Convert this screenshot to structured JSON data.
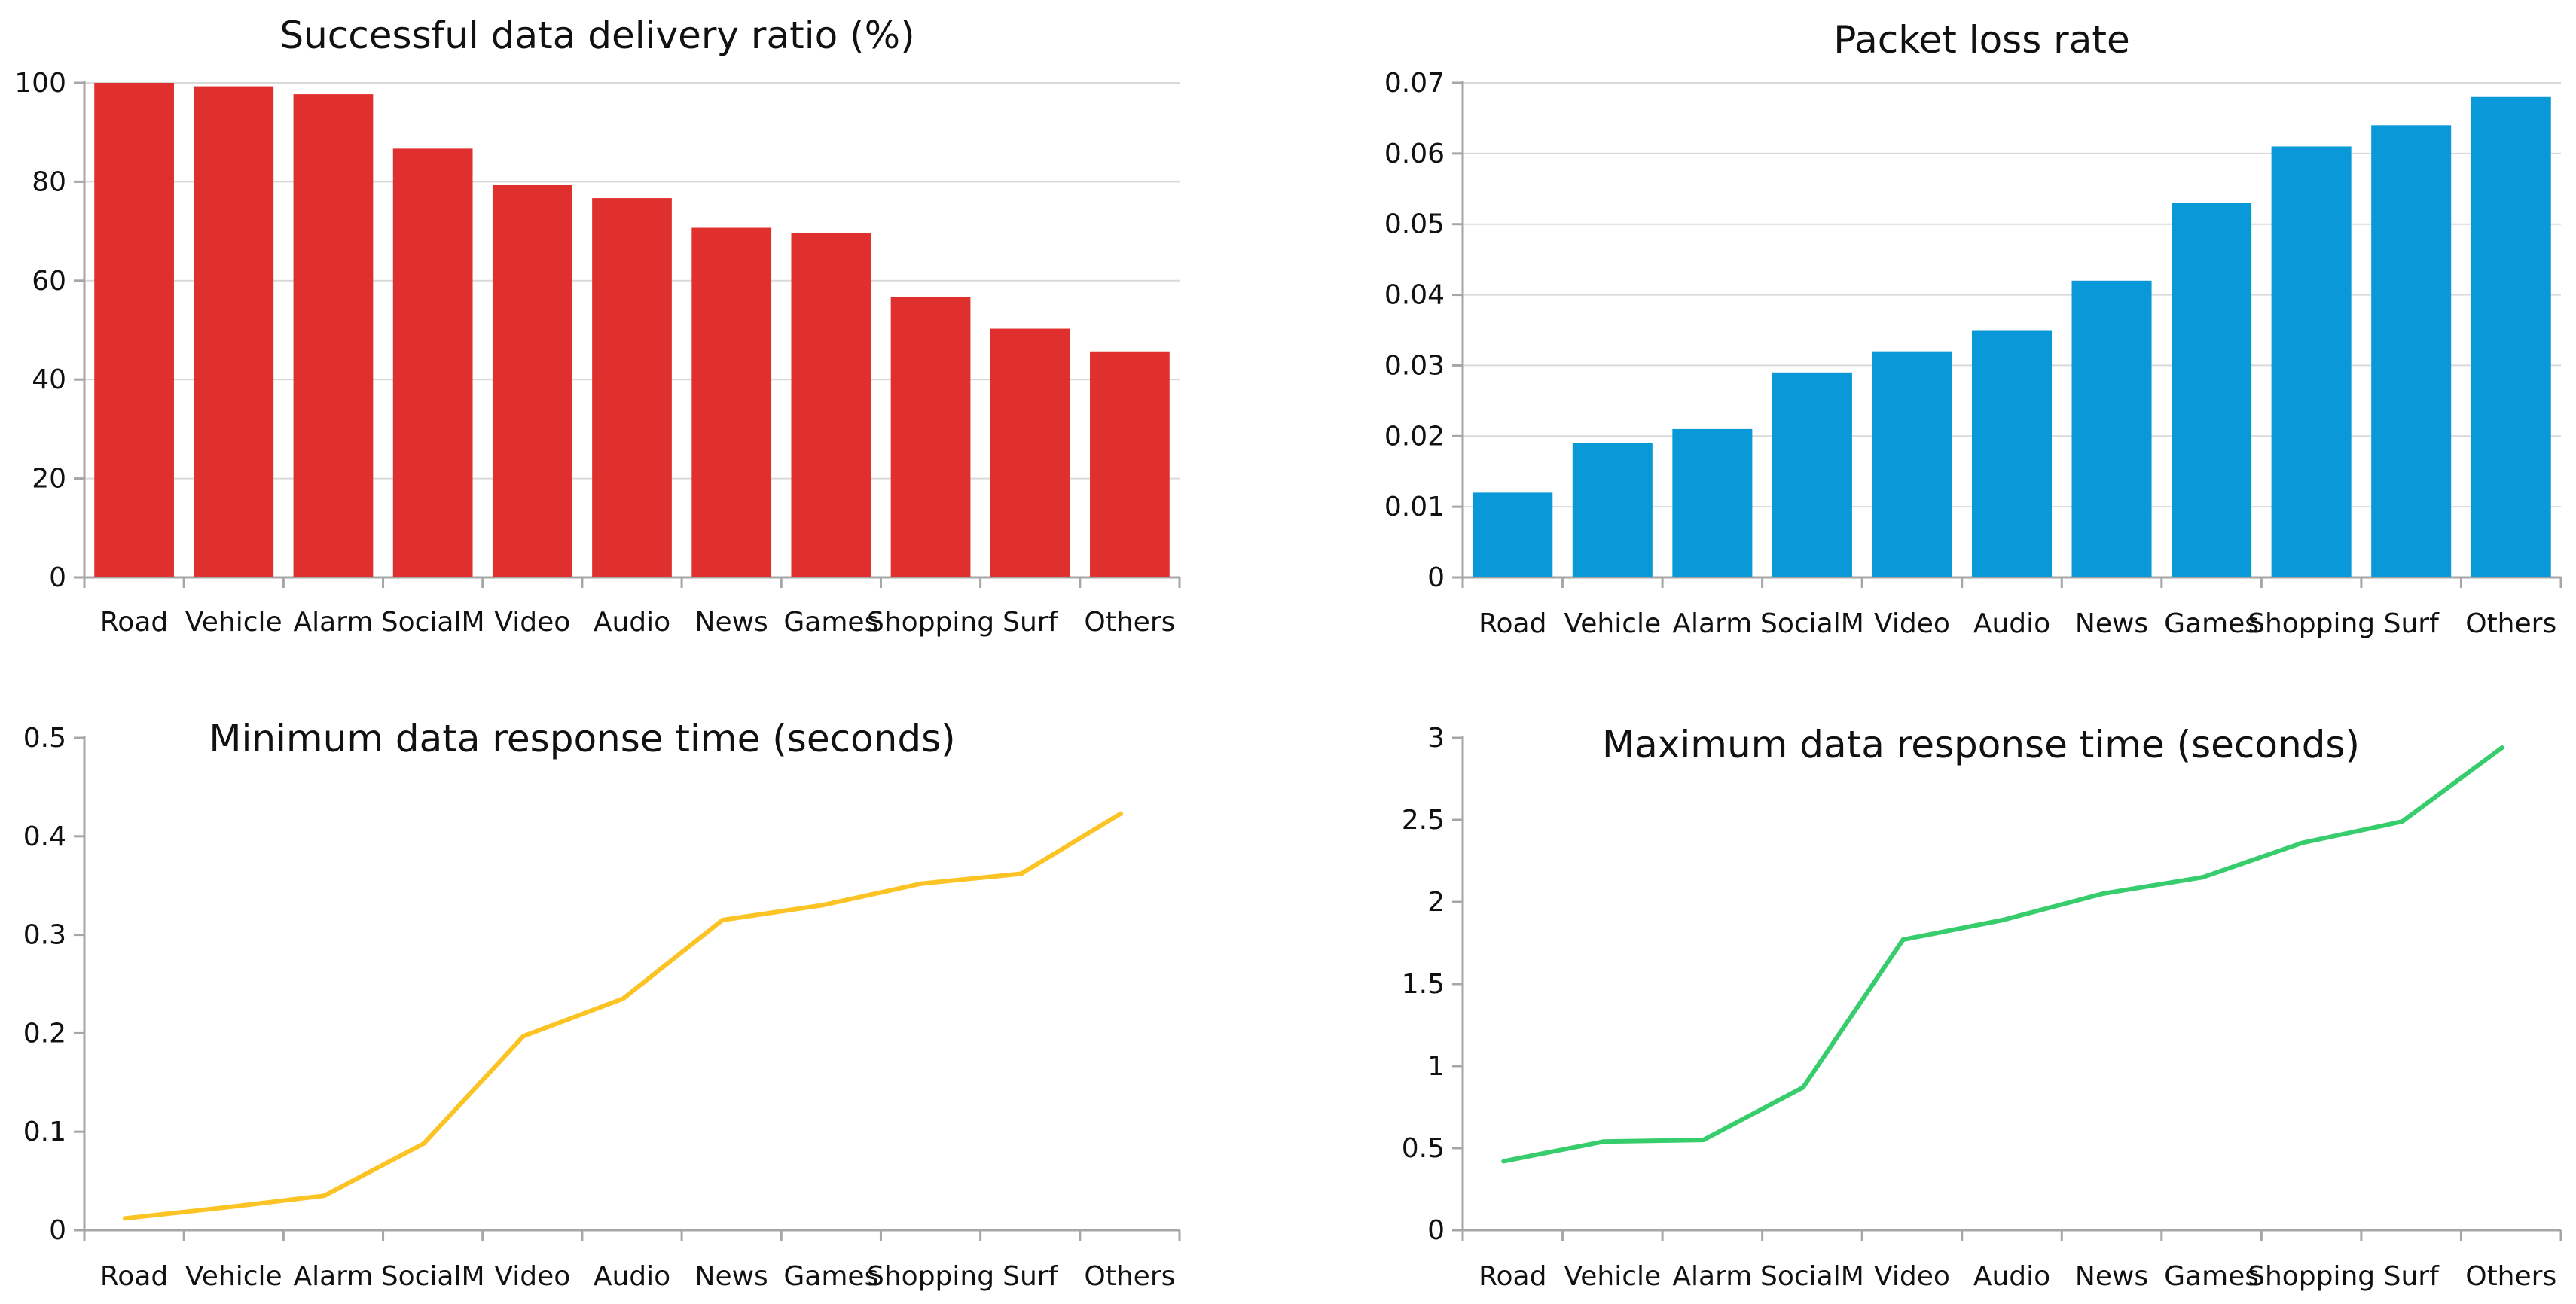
{
  "chart_data": [
    {
      "type": "bar",
      "title": "Successful data delivery ratio (%)",
      "categories": [
        "Road",
        "Vehicle",
        "Alarm",
        "SocialM",
        "Video",
        "Audio",
        "News",
        "Games",
        "Shopping",
        "Surf",
        "Others"
      ],
      "values": [
        100,
        99.3,
        97.7,
        86.7,
        79.3,
        76.7,
        70.7,
        69.7,
        56.7,
        50.3,
        45.7
      ],
      "yticks": [
        "0",
        "20",
        "40",
        "60",
        "80",
        "100"
      ],
      "ylim": [
        0,
        100
      ],
      "grid": true,
      "color": "#e0302d"
    },
    {
      "type": "bar",
      "title": "Packet loss rate",
      "categories": [
        "Road",
        "Vehicle",
        "Alarm",
        "SocialM",
        "Video",
        "Audio",
        "News",
        "Games",
        "Shopping",
        "Surf",
        "Others"
      ],
      "values": [
        0.012,
        0.019,
        0.021,
        0.029,
        0.032,
        0.035,
        0.042,
        0.053,
        0.061,
        0.064,
        0.068
      ],
      "yticks": [
        "0",
        "0.01",
        "0.02",
        "0.03",
        "0.04",
        "0.05",
        "0.06",
        "0.07"
      ],
      "ylim": [
        0,
        0.07
      ],
      "grid": true,
      "color": "#0999d9"
    },
    {
      "type": "line",
      "title": "Minimum data response time (seconds)",
      "categories": [
        "Road",
        "Vehicle",
        "Alarm",
        "SocialM",
        "Video",
        "Audio",
        "News",
        "Games",
        "Shopping",
        "Surf",
        "Others"
      ],
      "values": [
        0.012,
        0.023,
        0.035,
        0.088,
        0.197,
        0.235,
        0.315,
        0.33,
        0.352,
        0.362,
        0.423
      ],
      "yticks": [
        "0",
        "0.1",
        "0.2",
        "0.3",
        "0.4",
        "0.5"
      ],
      "ylim": [
        0,
        0.5
      ],
      "grid": false,
      "color": "#fbc324"
    },
    {
      "type": "line",
      "title": "Maximum data response time (seconds)",
      "categories": [
        "Road",
        "Vehicle",
        "Alarm",
        "SocialM",
        "Video",
        "Audio",
        "News",
        "Games",
        "Shopping",
        "Surf",
        "Others"
      ],
      "values": [
        0.42,
        0.54,
        0.55,
        0.87,
        1.77,
        1.89,
        2.05,
        2.15,
        2.36,
        2.49,
        2.94
      ],
      "yticks": [
        "0",
        "0.5",
        "1",
        "1.5",
        "2",
        "2.5",
        "3"
      ],
      "ylim": [
        0,
        3
      ],
      "grid": false,
      "color": "#37cd6d"
    }
  ]
}
